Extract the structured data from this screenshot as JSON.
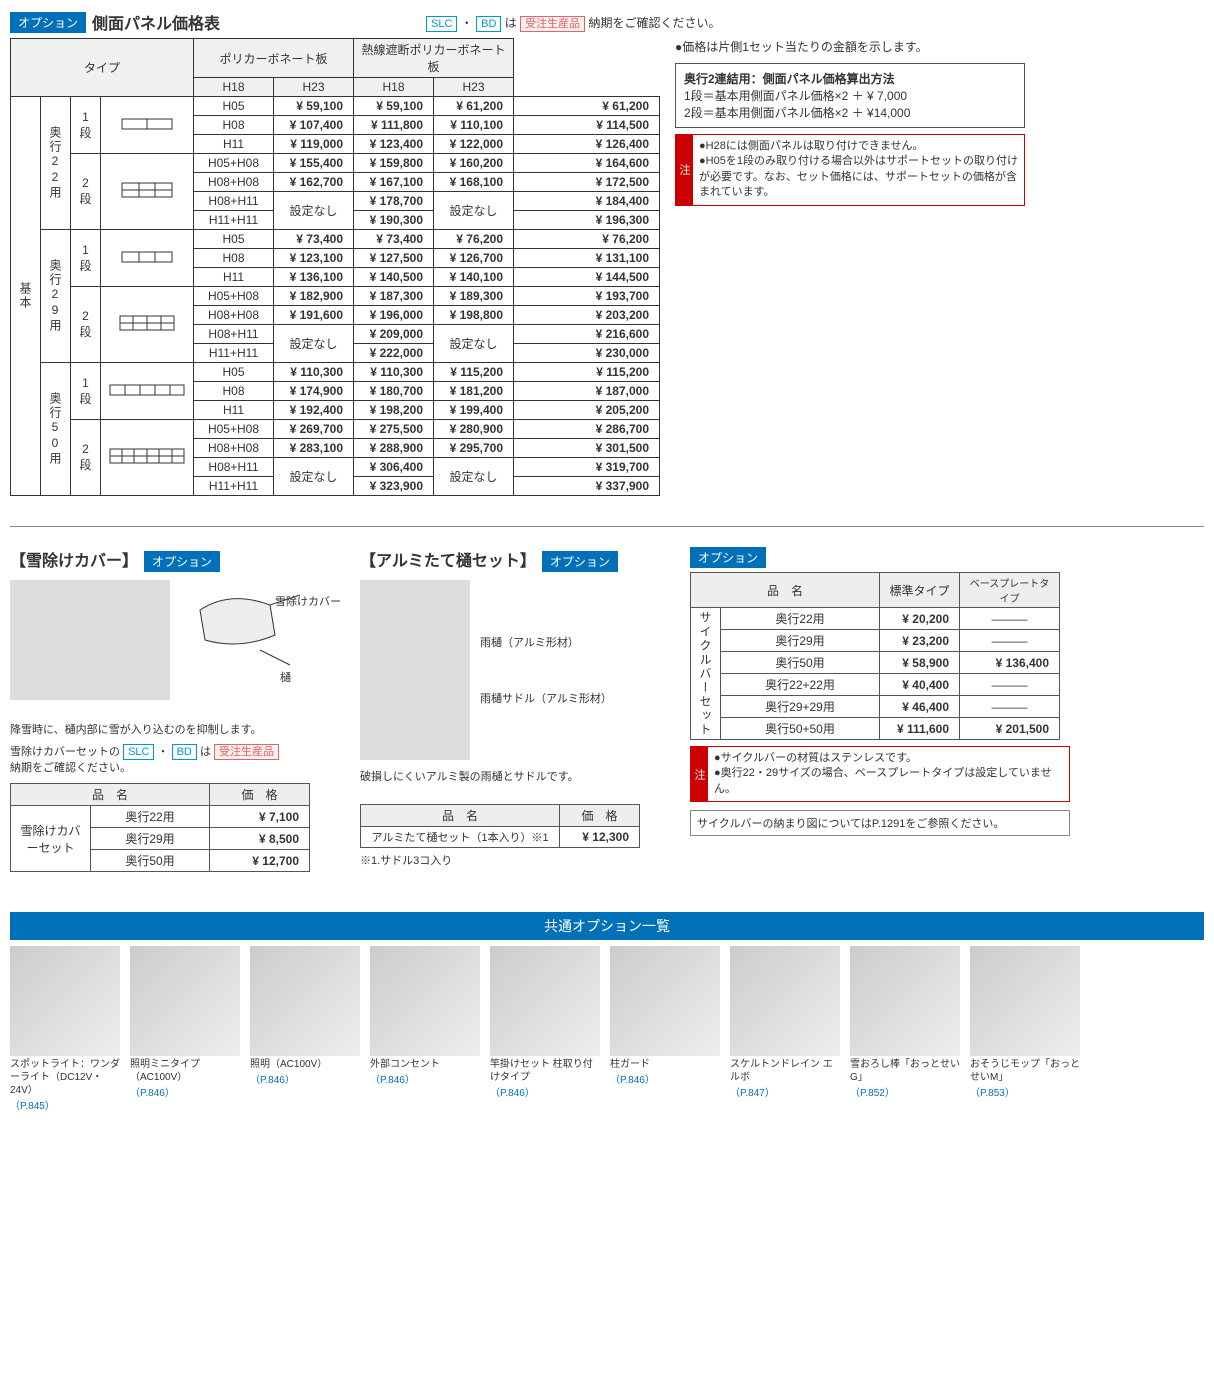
{
  "header": {
    "option_badge": "オプション",
    "title": "側面パネル価格表",
    "slc": "SLC",
    "bd": "BD",
    "note_mid": "・",
    "note_suffix_pre": "は",
    "order_badge": "受注生産品",
    "note_suffix": "納期をご確認ください。"
  },
  "table": {
    "type_header": "タイプ",
    "mat1": "ポリカーボネート板",
    "mat2": "熱線遮断ポリカーボネート板",
    "h18": "H18",
    "h23": "H23",
    "base": "基本",
    "d22": "奥行22用",
    "d29": "奥行29用",
    "d50": "奥行50用",
    "tier1": "1段",
    "tier2": "2段",
    "sizes": {
      "h05": "H05",
      "h08": "H08",
      "h11": "H11",
      "h05h08": "H05+H08",
      "h08h08": "H08+H08",
      "h08h11": "H08+H11",
      "h11h11": "H11+H11"
    },
    "none": "設定なし",
    "rows": [
      [
        "¥ 59,100",
        "¥ 59,100",
        "¥ 61,200",
        "¥ 61,200"
      ],
      [
        "¥ 107,400",
        "¥ 111,800",
        "¥ 110,100",
        "¥ 114,500"
      ],
      [
        "¥ 119,000",
        "¥ 123,400",
        "¥ 122,000",
        "¥ 126,400"
      ],
      [
        "¥ 155,400",
        "¥ 159,800",
        "¥ 160,200",
        "¥ 164,600"
      ],
      [
        "¥ 162,700",
        "¥ 167,100",
        "¥ 168,100",
        "¥ 172,500"
      ],
      [
        "",
        "¥ 178,700",
        "",
        "¥ 184,400"
      ],
      [
        "",
        "¥ 190,300",
        "",
        "¥ 196,300"
      ],
      [
        "¥ 73,400",
        "¥ 73,400",
        "¥ 76,200",
        "¥ 76,200"
      ],
      [
        "¥ 123,100",
        "¥ 127,500",
        "¥ 126,700",
        "¥ 131,100"
      ],
      [
        "¥ 136,100",
        "¥ 140,500",
        "¥ 140,100",
        "¥ 144,500"
      ],
      [
        "¥ 182,900",
        "¥ 187,300",
        "¥ 189,300",
        "¥ 193,700"
      ],
      [
        "¥ 191,600",
        "¥ 196,000",
        "¥ 198,800",
        "¥ 203,200"
      ],
      [
        "",
        "¥ 209,000",
        "",
        "¥ 216,600"
      ],
      [
        "",
        "¥ 222,000",
        "",
        "¥ 230,000"
      ],
      [
        "¥ 110,300",
        "¥ 110,300",
        "¥ 115,200",
        "¥ 115,200"
      ],
      [
        "¥ 174,900",
        "¥ 180,700",
        "¥ 181,200",
        "¥ 187,000"
      ],
      [
        "¥ 192,400",
        "¥ 198,200",
        "¥ 199,400",
        "¥ 205,200"
      ],
      [
        "¥ 269,700",
        "¥ 275,500",
        "¥ 280,900",
        "¥ 286,700"
      ],
      [
        "¥ 283,100",
        "¥ 288,900",
        "¥ 295,700",
        "¥ 301,500"
      ],
      [
        "",
        "¥ 306,400",
        "",
        "¥ 319,700"
      ],
      [
        "",
        "¥ 323,900",
        "",
        "¥ 337,900"
      ]
    ]
  },
  "right": {
    "bullet1": "●価格は片側1セット当たりの金額を示します。",
    "calc_title": "奥行2連結用：側面パネル価格算出方法",
    "calc_l1": "1段＝基本用側面パネル価格×2 ＋ ¥ 7,000",
    "calc_l2": "2段＝基本用側面パネル価格×2 ＋ ¥14,000",
    "caution_tag": "注",
    "caution_b1": "●H28には側面パネルは取り付けできません。",
    "caution_b2": "●H05を1段のみ取り付ける場合以外はサポートセットの取り付けが必要です。なお、セット価格には、サポートセットの価格が含まれています。"
  },
  "snow": {
    "title": "【雪除けカバー】",
    "badge": "オプション",
    "label_cover": "雪除けカバー",
    "label_gutter": "樋",
    "desc": "降雪時に、樋内部に雪が入り込むのを抑制します。",
    "note_pre": "雪除けカバーセットの",
    "slc": "SLC",
    "bd": "BD",
    "note_mid": "・",
    "note_is": "は",
    "order": "受注生産品",
    "note_after": "納期をご確認ください。",
    "col_name": "品　名",
    "col_price": "価　格",
    "set_name": "雪除けカバーセット",
    "r1n": "奥行22用",
    "r1p": "¥  7,100",
    "r2n": "奥行29用",
    "r2p": "¥  8,500",
    "r3n": "奥行50用",
    "r3p": "¥ 12,700"
  },
  "alumi": {
    "title": "【アルミたて樋セット】",
    "badge": "オプション",
    "label_pipe": "雨樋（アルミ形材）",
    "label_saddle": "雨樋サドル（アルミ形材）",
    "desc": "破損しにくいアルミ製の雨樋とサドルです。",
    "col_name": "品　名",
    "col_price": "価　格",
    "row_name": "アルミたて樋セット（1本入り）※1",
    "row_price": "¥ 12,300",
    "foot": "※1.サドル3コ入り"
  },
  "cycle": {
    "badge": "オプション",
    "col_name": "品　名",
    "col_std": "標準タイプ",
    "col_base": "ベースプレートタイプ",
    "rowhead": "サイクルバーセット",
    "dash": "―――",
    "rows": [
      [
        "奥行22用",
        "¥ 20,200",
        "―――"
      ],
      [
        "奥行29用",
        "¥ 23,200",
        "―――"
      ],
      [
        "奥行50用",
        "¥ 58,900",
        "¥ 136,400"
      ],
      [
        "奥行22+22用",
        "¥ 40,400",
        "―――"
      ],
      [
        "奥行29+29用",
        "¥ 46,400",
        "―――"
      ],
      [
        "奥行50+50用",
        "¥ 111,600",
        "¥ 201,500"
      ]
    ],
    "caution_tag": "注",
    "caution1": "●サイクルバーの材質はステンレスです。",
    "caution2": "●奥行22・29サイズの場合、ベースプレートタイプは設定していません。",
    "ref": "サイクルバーの納まり図についてはP.1291をご参照ください。"
  },
  "common": {
    "header": "共通オプション一覧",
    "items": [
      {
        "cap": "スポットライト：ワンダーライト（DC12V・24V）",
        "ref": "（P.845）"
      },
      {
        "cap": "照明ミニタイプ（AC100V）",
        "ref": "（P.846）"
      },
      {
        "cap": "照明（AC100V）",
        "ref": "（P.846）"
      },
      {
        "cap": "外部コンセント",
        "ref": "（P.846）"
      },
      {
        "cap": "竿掛けセット 柱取り付けタイプ",
        "ref": "（P.846）"
      },
      {
        "cap": "柱ガード",
        "ref": "（P.846）"
      },
      {
        "cap": "スケルトンドレイン エルボ",
        "ref": "（P.847）"
      },
      {
        "cap": "雪おろし棒「おっとせいG」",
        "ref": "（P.852）"
      },
      {
        "cap": "おそうじモップ「おっとせいM」",
        "ref": "（P.853）"
      }
    ]
  }
}
